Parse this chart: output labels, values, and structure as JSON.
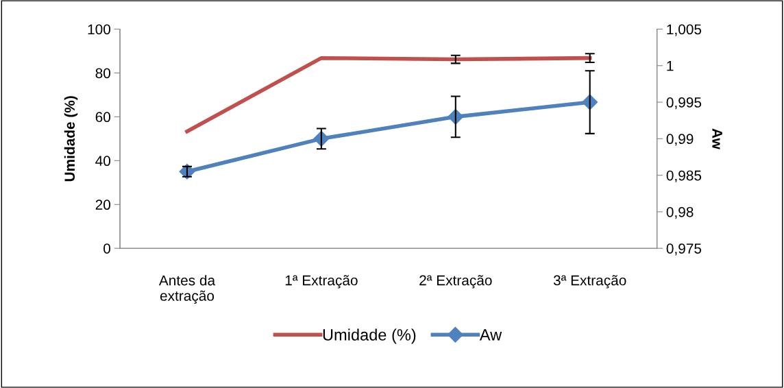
{
  "chart_data": {
    "type": "line",
    "ylabel": "Umidade (%)",
    "y2label": "Aw",
    "categories": [
      "Antes da\nextração",
      "1ª Extração",
      "2ª Extração",
      "3ª Extração"
    ],
    "series": [
      {
        "name": "Umidade (%)",
        "color": "#c0504d",
        "values": [
          53.3,
          86.8,
          86.2,
          86.8
        ],
        "errors": [
          null,
          null,
          1.8,
          2.0
        ],
        "marker": "none"
      },
      {
        "name": "Aw",
        "color": "#4f81bd",
        "values": [
          0.9855,
          0.99,
          0.993,
          0.995
        ],
        "errors": [
          0.0007,
          0.0014,
          0.0028,
          0.0043
        ],
        "marker": "diamond",
        "axis": "y2"
      }
    ],
    "ylim": [
      0,
      100
    ],
    "yticks": [
      0,
      20,
      40,
      60,
      80,
      100
    ],
    "y2lim": [
      0.975,
      1.005
    ],
    "y2ticks": [
      {
        "value": 0.975,
        "label": "0,975"
      },
      {
        "value": 0.98,
        "label": "0,98"
      },
      {
        "value": 0.985,
        "label": "0,985"
      },
      {
        "value": 0.99,
        "label": "0,99"
      },
      {
        "value": 0.995,
        "label": "0,995"
      },
      {
        "value": 1.0,
        "label": "1"
      },
      {
        "value": 1.005,
        "label": "1,005"
      }
    ],
    "legend": "bottom",
    "grid": false,
    "line_style": "solid"
  }
}
